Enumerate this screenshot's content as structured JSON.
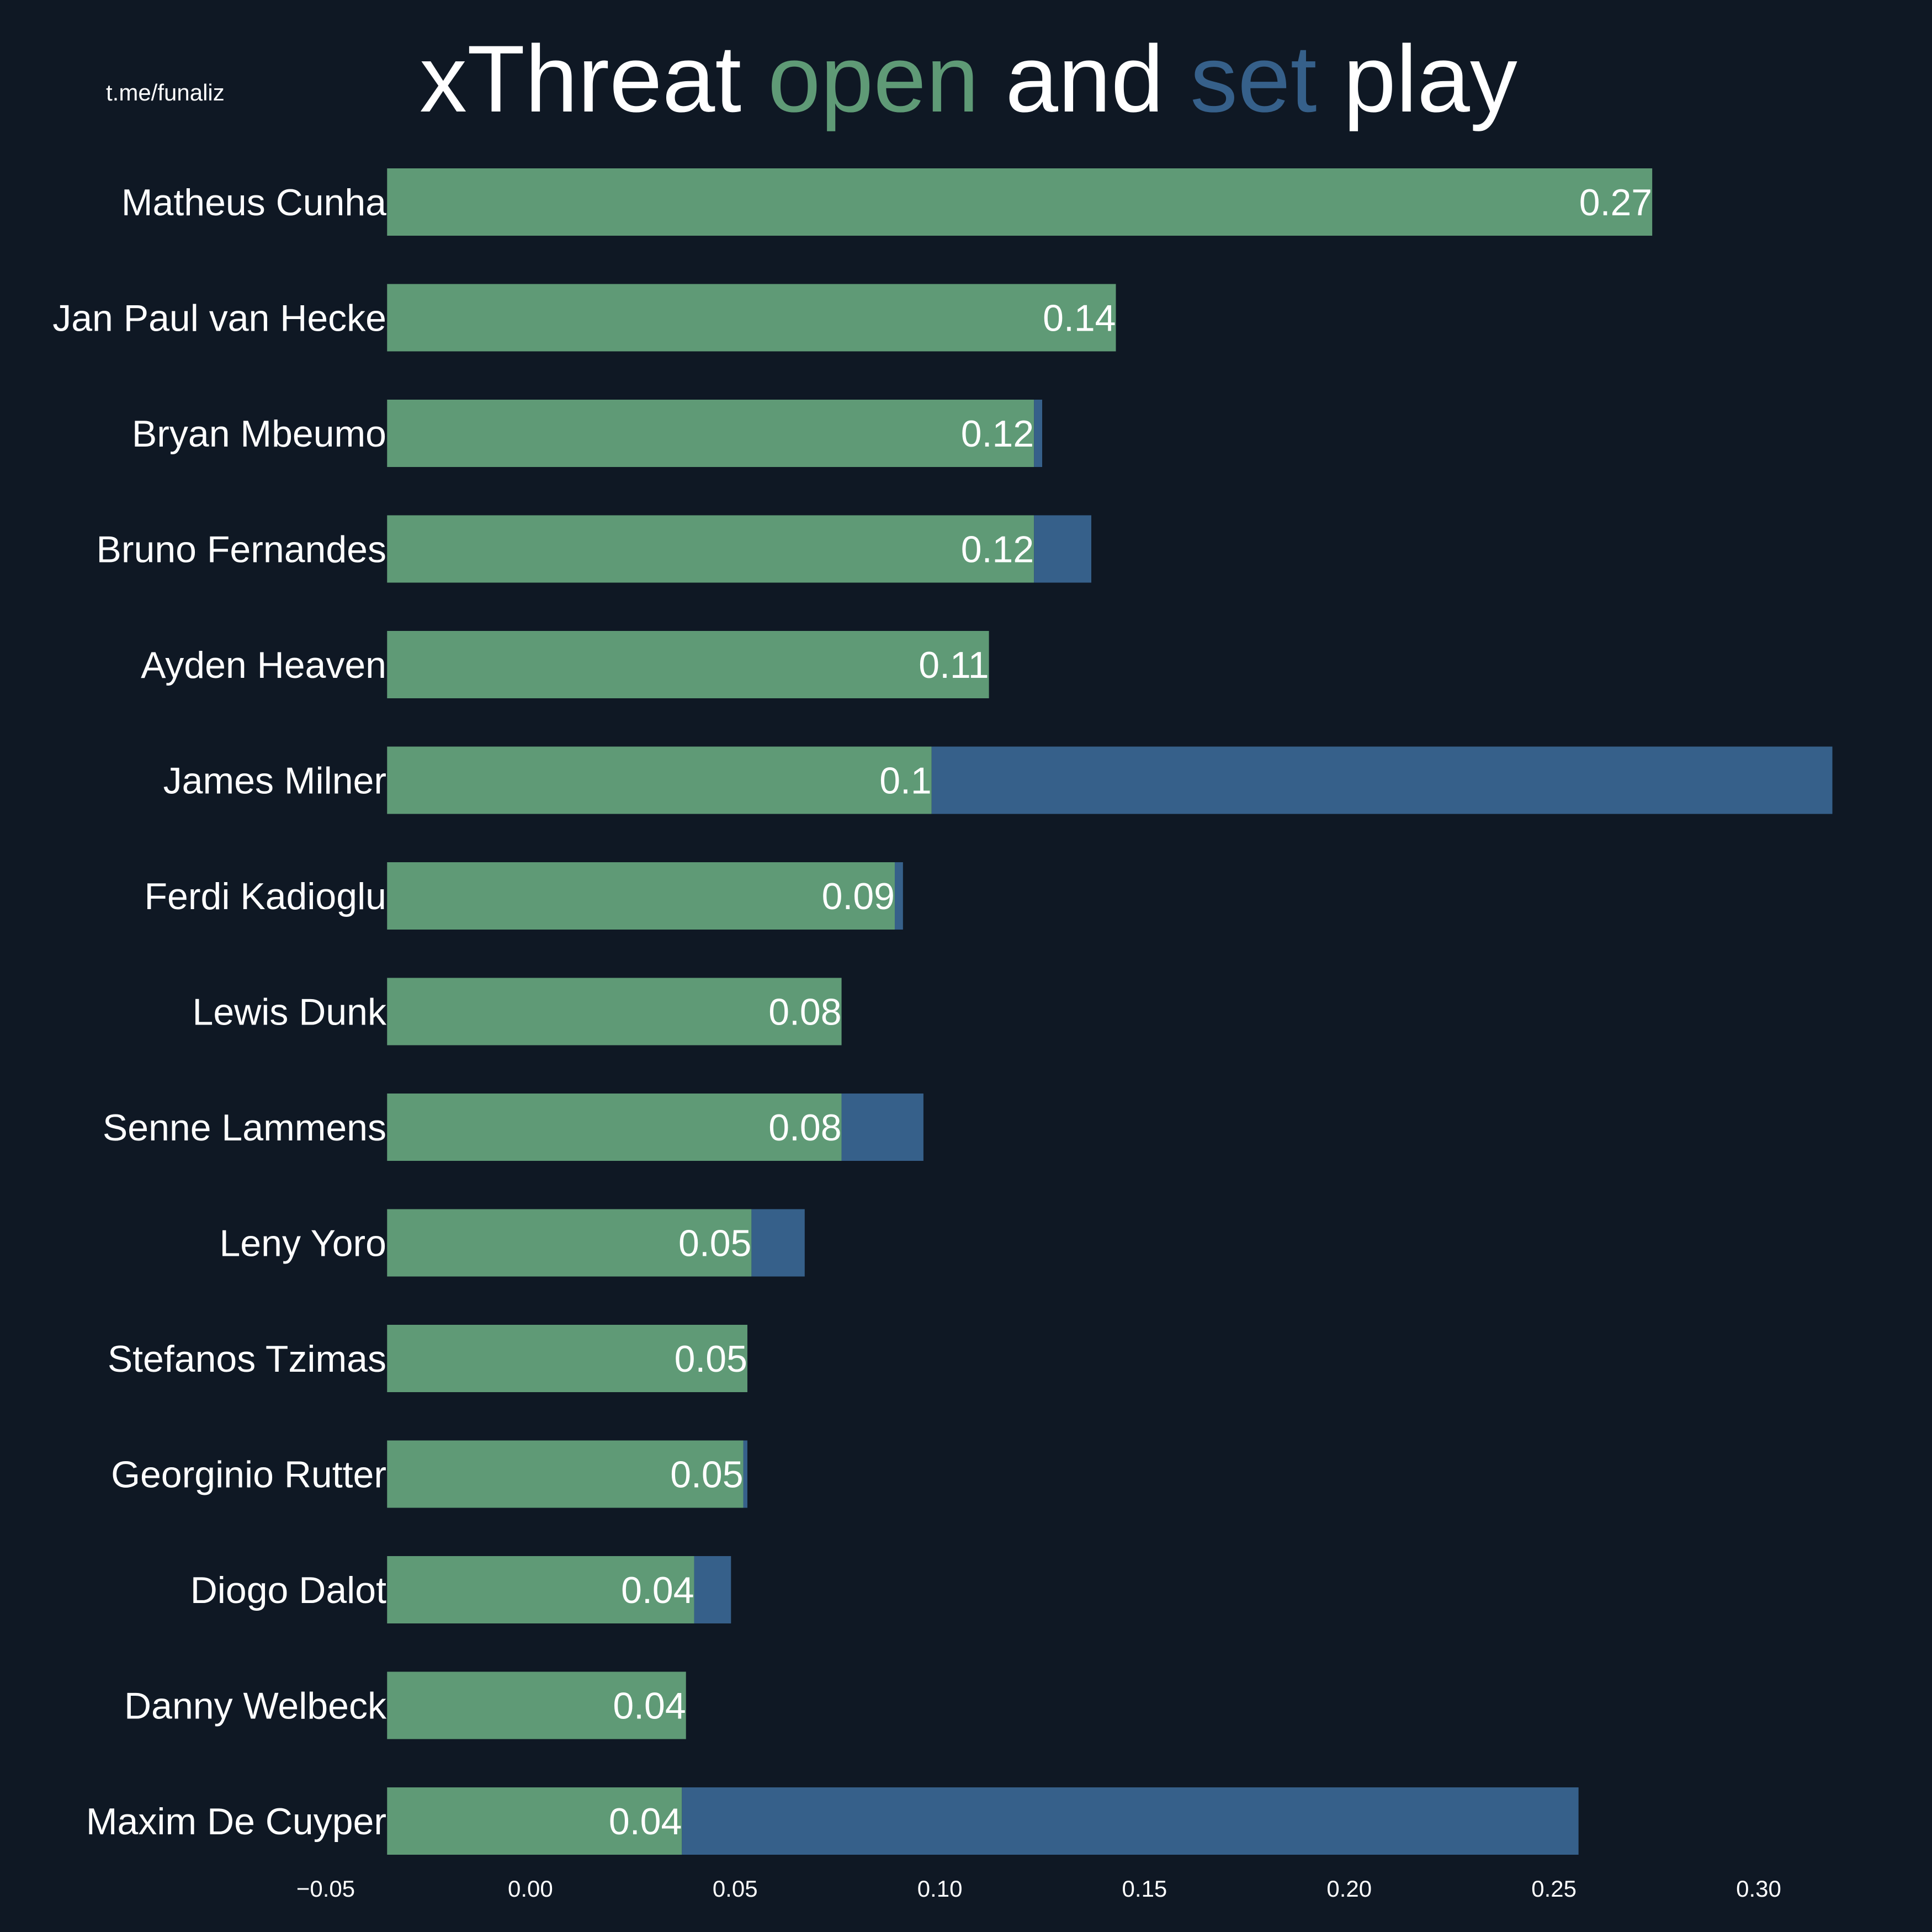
{
  "watermark": "t.me/funaliz",
  "title_parts": [
    {
      "text": "xThreat ",
      "color": "#ffffff"
    },
    {
      "text": "open",
      "color": "#5f9a76"
    },
    {
      "text": " and ",
      "color": "#ffffff"
    },
    {
      "text": "set",
      "color": "#36608a"
    },
    {
      "text": " play",
      "color": "#ffffff"
    }
  ],
  "colors": {
    "background": "#0f1824",
    "open_play": "#5f9a76",
    "set_play": "#36608a",
    "text": "#ffffff"
  },
  "chart_data": {
    "type": "bar",
    "orientation": "horizontal",
    "stacked": true,
    "title": "xThreat open and set play",
    "xlabel": "",
    "ylabel": "",
    "xlim": [
      -0.05,
      0.32
    ],
    "xticks": [
      "−0.05",
      "0.00",
      "0.05",
      "0.10",
      "0.15",
      "0.20",
      "0.25",
      "0.30"
    ],
    "xtick_values": [
      -0.05,
      0.0,
      0.05,
      0.1,
      0.15,
      0.2,
      0.25,
      0.3
    ],
    "grid": false,
    "categories": [
      "Matheus Cunha",
      "Jan Paul van Hecke",
      "Bryan Mbeumo",
      "Bruno Fernandes",
      "Ayden Heaven",
      "James Milner",
      "Ferdi Kadioglu",
      "Lewis Dunk",
      "Senne Lammens",
      "Leny Yoro",
      "Stefanos Tzimas",
      "Georginio Rutter",
      "Diogo Dalot",
      "Danny Welbeck",
      "Maxim De Cuyper"
    ],
    "series": [
      {
        "name": "open",
        "start": [
          -0.035,
          -0.035,
          -0.035,
          -0.035,
          -0.035,
          -0.035,
          -0.035,
          -0.035,
          -0.035,
          -0.035,
          -0.035,
          -0.035,
          -0.035,
          -0.035,
          -0.035
        ],
        "end": [
          0.274,
          0.143,
          0.123,
          0.123,
          0.112,
          0.098,
          0.089,
          0.076,
          0.076,
          0.054,
          0.053,
          0.052,
          0.04,
          0.038,
          0.037
        ],
        "labels": [
          "0.27",
          "0.14",
          "0.12",
          "0.12",
          "0.11",
          "0.1",
          "0.09",
          "0.08",
          "0.08",
          "0.05",
          "0.05",
          "0.05",
          "0.04",
          "0.04",
          "0.04"
        ]
      },
      {
        "name": "set",
        "start": [
          0.274,
          0.143,
          0.123,
          0.123,
          0.112,
          0.098,
          0.089,
          0.076,
          0.076,
          0.054,
          0.053,
          0.052,
          0.04,
          0.038,
          0.037
        ],
        "end": [
          0.274,
          0.143,
          0.125,
          0.137,
          0.112,
          0.318,
          0.091,
          0.076,
          0.096,
          0.067,
          0.053,
          0.053,
          0.049,
          0.038,
          0.256
        ]
      }
    ]
  }
}
